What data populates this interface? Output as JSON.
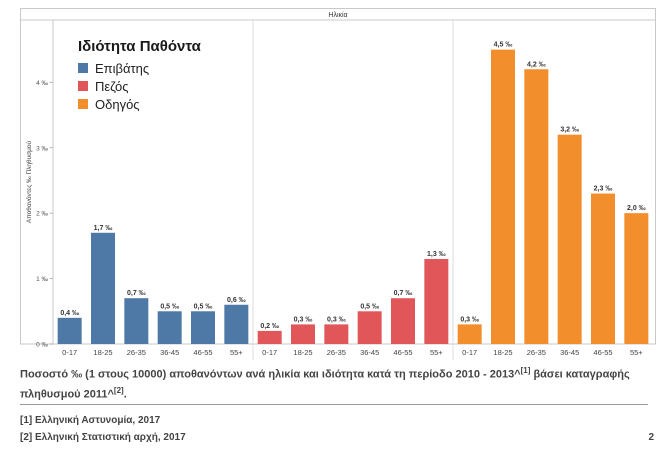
{
  "chart_data": {
    "type": "bar",
    "top_label": "Ηλικία",
    "ylabel": "Αποθανόντες ‰ Πληθυσμού",
    "ylim": [
      0,
      4.8
    ],
    "y_ticks": [
      0,
      1,
      2,
      3,
      4
    ],
    "y_tick_labels": [
      "0 ‰",
      "1 ‰",
      "2 ‰",
      "3 ‰",
      "4 ‰"
    ],
    "grid": false,
    "legend_title": "Ιδιότητα Παθόντα",
    "legend_position": "top-left",
    "categories": [
      "0-17",
      "18-25",
      "26-35",
      "36-45",
      "46-55",
      "55+"
    ],
    "series": [
      {
        "name": "Επιβάτης",
        "color": "#4e79a7",
        "values": [
          0.4,
          1.7,
          0.7,
          0.5,
          0.5,
          0.6
        ],
        "labels": [
          "0,4 ‰",
          "1,7 ‰",
          "0,7 ‰",
          "0,5 ‰",
          "0,5 ‰",
          "0,6 ‰"
        ]
      },
      {
        "name": "Πεζός",
        "color": "#e15759",
        "values": [
          0.2,
          0.3,
          0.3,
          0.5,
          0.7,
          1.3
        ],
        "labels": [
          "0,2 ‰",
          "0,3 ‰",
          "0,3 ‰",
          "0,5 ‰",
          "0,7 ‰",
          "1,3 ‰"
        ]
      },
      {
        "name": "Οδηγός",
        "color": "#f28e2b",
        "values": [
          0.3,
          4.5,
          4.2,
          3.2,
          2.3,
          2.0
        ],
        "labels": [
          "0,3 ‰",
          "4,5 ‰",
          "4,2 ‰",
          "3,2 ‰",
          "2,3 ‰",
          "2,0 ‰"
        ]
      }
    ]
  },
  "caption": {
    "text": "Ποσοστό ‰ (1 στους 10000) αποθανόντων ανά ηλικία και ιδιότητα κατά τη περίοδο 2010 - 2013^",
    "sup1": "[1]",
    "mid": " βάσει καταγραφής πληθυσμού 2011^",
    "sup2": "[2]",
    "end": "."
  },
  "references": [
    "[1] Ελληνική Αστυνομία, 2017",
    "[2] Ελληνική Στατιστική αρχή, 2017"
  ],
  "page_number": "2"
}
